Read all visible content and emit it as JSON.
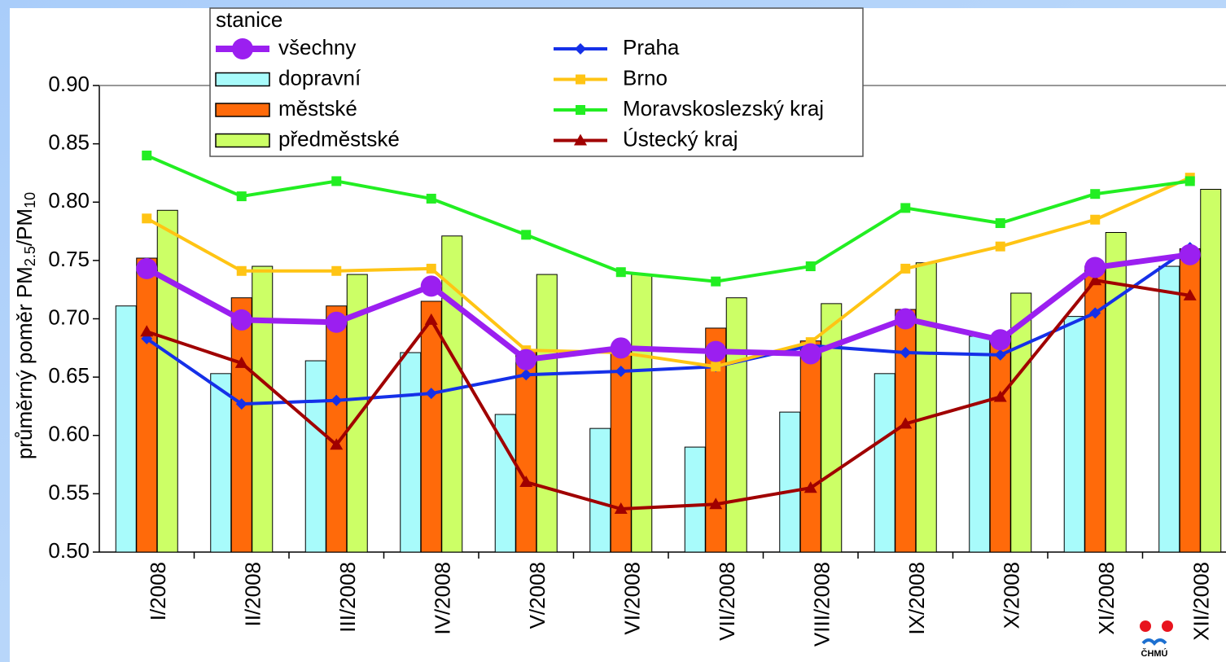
{
  "chart_data": {
    "type": "combo",
    "ylabel": [
      "průměrný poměr PM",
      "2.5",
      "/PM",
      "10"
    ],
    "legend_title": "stanice",
    "logo": "ČHMÚ",
    "categories": [
      "I/2008",
      "II/2008",
      "III/2008",
      "IV/2008",
      "V/2008",
      "VI/2008",
      "VII/2008",
      "VIII/2008",
      "IX/2008",
      "X/2008",
      "XI/2008",
      "XII/2008"
    ],
    "ylim": [
      0.5,
      0.9
    ],
    "yticks": [
      {
        "value": 0.5,
        "label": "0.50"
      },
      {
        "value": 0.55,
        "label": "0.55"
      },
      {
        "value": 0.6,
        "label": "0.60"
      },
      {
        "value": 0.65,
        "label": "0.65"
      },
      {
        "value": 0.7,
        "label": "0.70"
      },
      {
        "value": 0.75,
        "label": "0.75"
      },
      {
        "value": 0.8,
        "label": "0.80"
      },
      {
        "value": 0.85,
        "label": "0.85"
      },
      {
        "value": 0.9,
        "label": "0.90"
      }
    ],
    "grid": false,
    "series": [
      {
        "name": "všechny",
        "type": "line",
        "marker": "circle",
        "color": "#9b1ff0",
        "values": [
          0.743,
          0.699,
          0.697,
          0.728,
          0.665,
          0.675,
          0.672,
          0.67,
          0.7,
          0.682,
          0.744,
          0.755
        ]
      },
      {
        "name": "dopravní",
        "type": "bar",
        "color": "#a8fbfb",
        "values": [
          0.711,
          0.653,
          0.664,
          0.671,
          0.618,
          0.606,
          0.59,
          0.62,
          0.653,
          0.685,
          0.702,
          0.745
        ]
      },
      {
        "name": "městské",
        "type": "bar",
        "color": "#ff6a0a",
        "values": [
          0.752,
          0.718,
          0.711,
          0.715,
          0.672,
          0.672,
          0.692,
          0.681,
          0.708,
          0.685,
          0.745,
          0.76
        ]
      },
      {
        "name": "předměstské",
        "type": "bar",
        "color": "#ccff66",
        "values": [
          0.793,
          0.745,
          0.738,
          0.771,
          0.738,
          0.738,
          0.718,
          0.713,
          0.748,
          0.722,
          0.774,
          0.811
        ]
      },
      {
        "name": "Praha",
        "type": "line",
        "marker": "diamond",
        "color": "#1530e8",
        "values": [
          0.683,
          0.627,
          0.63,
          0.636,
          0.652,
          0.655,
          0.659,
          0.677,
          0.671,
          0.669,
          0.705,
          0.761
        ]
      },
      {
        "name": "Brno",
        "type": "line",
        "marker": "square",
        "color": "#ffc414",
        "values": [
          0.786,
          0.741,
          0.741,
          0.743,
          0.673,
          0.671,
          0.659,
          0.68,
          0.743,
          0.762,
          0.785,
          0.821
        ]
      },
      {
        "name": "Moravskoslezský kraj",
        "type": "line",
        "marker": "square",
        "color": "#22ee22",
        "values": [
          0.84,
          0.805,
          0.818,
          0.803,
          0.772,
          0.74,
          0.732,
          0.745,
          0.795,
          0.782,
          0.807,
          0.818
        ]
      },
      {
        "name": "Ústecký kraj",
        "type": "line",
        "marker": "triangle",
        "color": "#a00000",
        "values": [
          0.689,
          0.662,
          0.592,
          0.699,
          0.56,
          0.537,
          0.541,
          0.555,
          0.61,
          0.633,
          0.733,
          0.72
        ]
      }
    ]
  }
}
